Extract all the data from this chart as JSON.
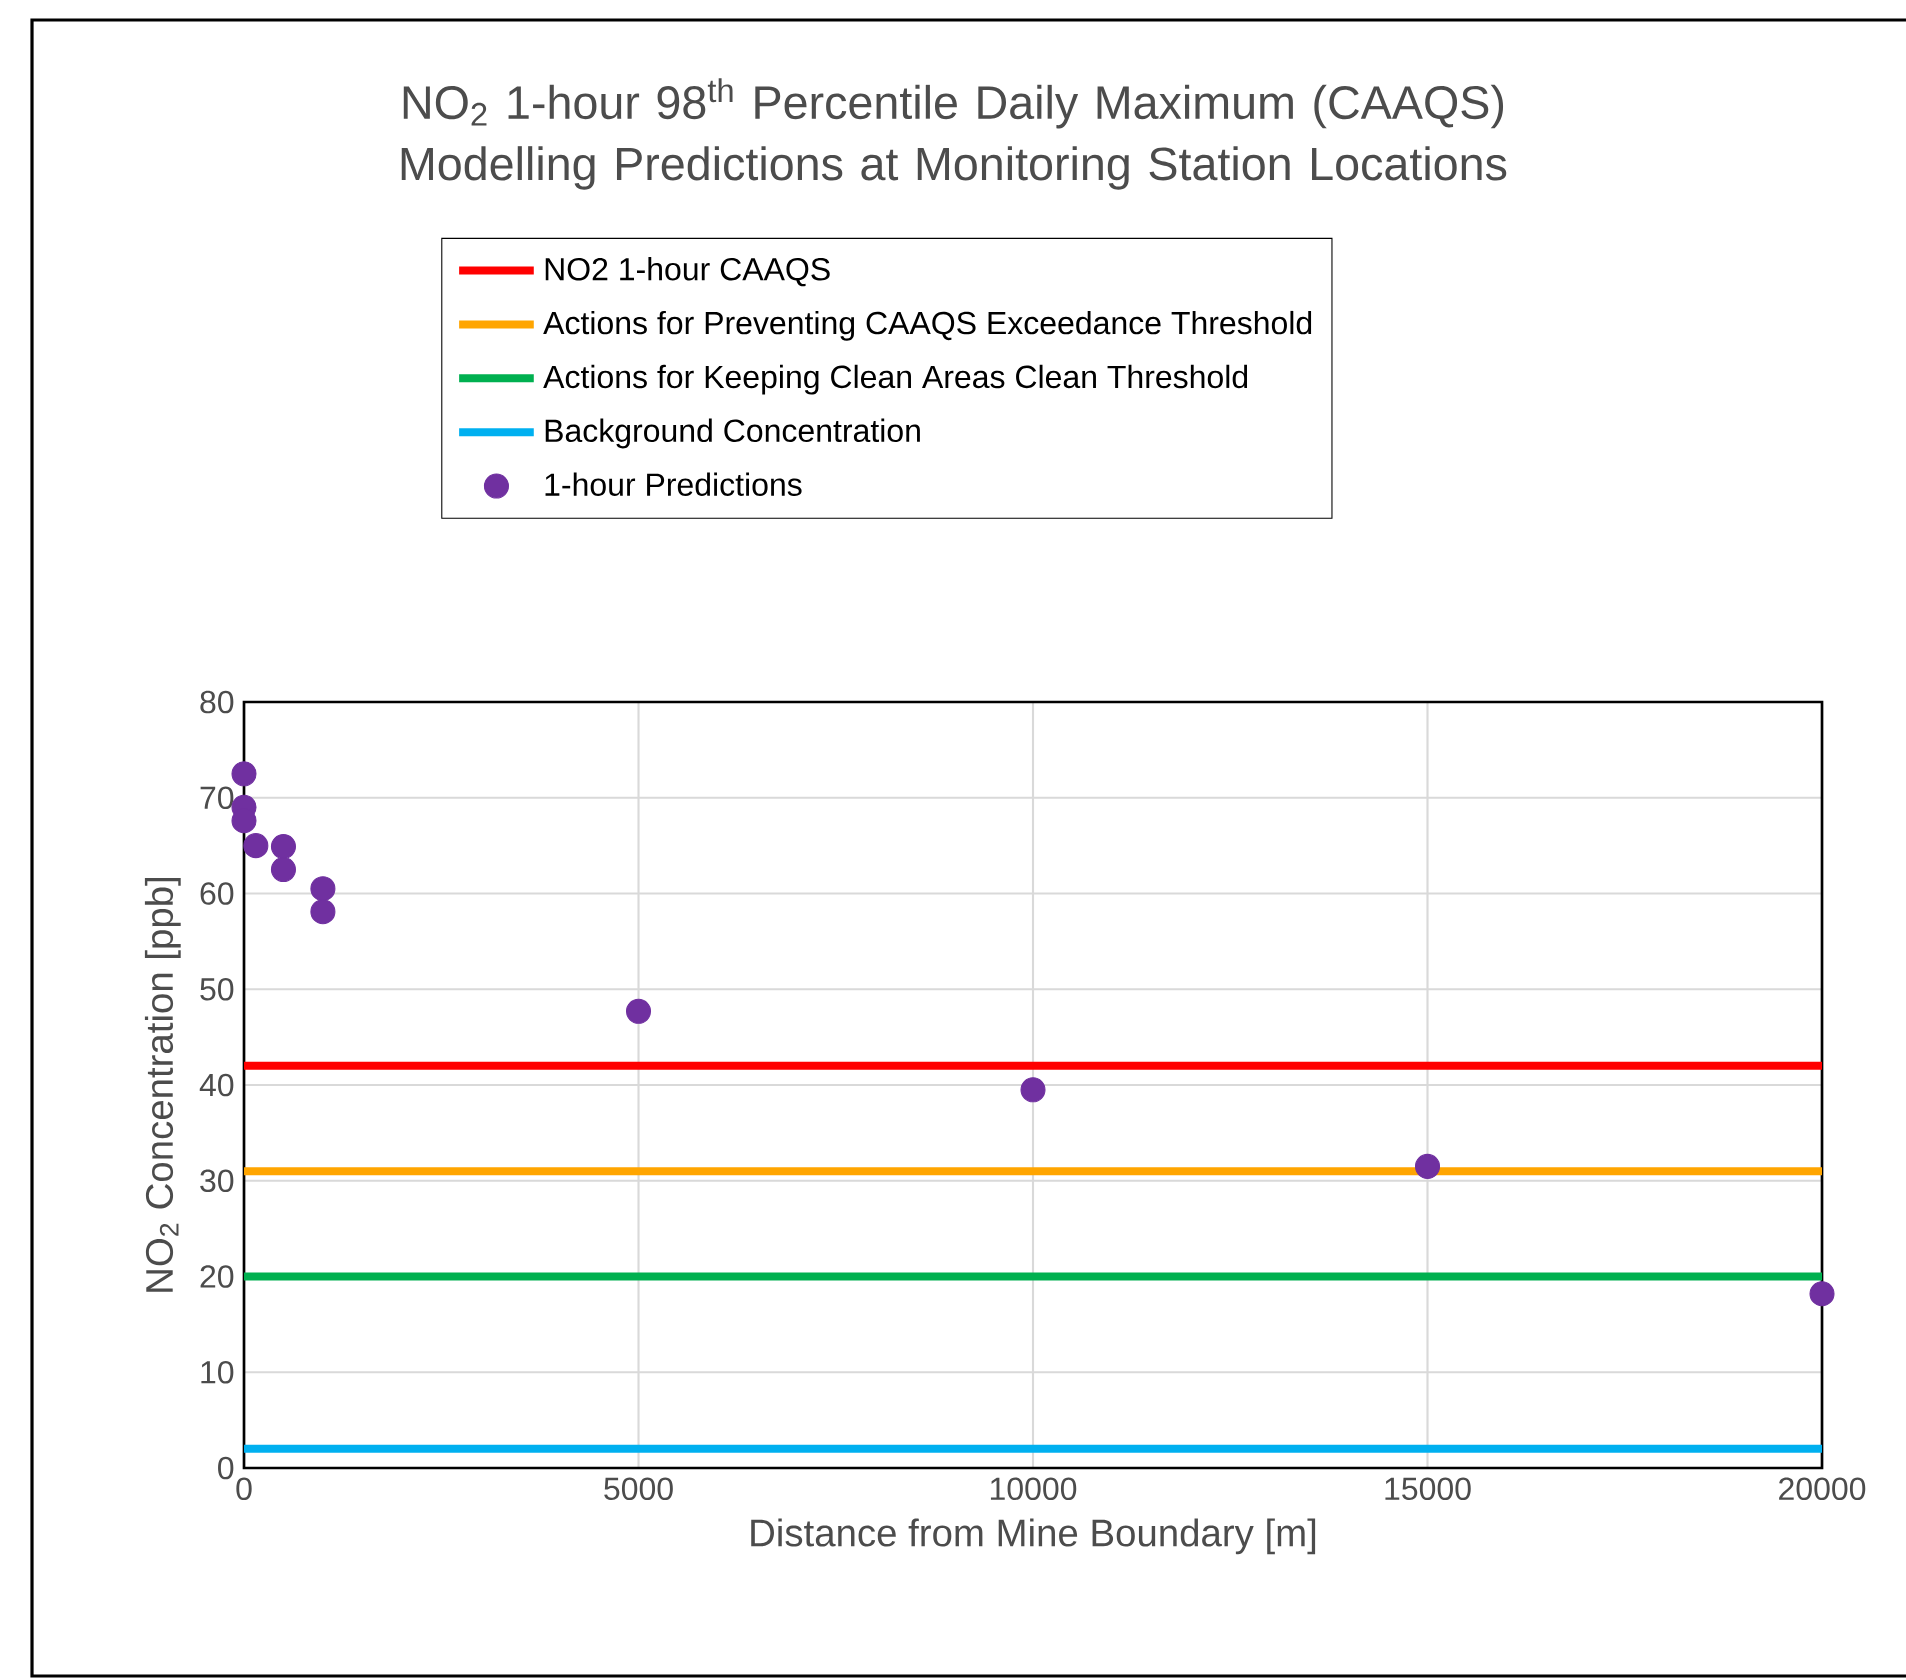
{
  "chart_data": {
    "type": "scatter",
    "title": "NO$_{2}$ 1-hour 98$^{th}$ Percentile Daily Maximum (CAAQS) Modelling Predictions at Monitoring Station Locations",
    "xlabel": "Distance from Mine Boundary [m]",
    "ylabel": "NO$_{2}$ Concentration [ppb]",
    "xlim": [
      0,
      20000
    ],
    "xticks": [
      0,
      5000,
      10000,
      15000,
      20000
    ],
    "ylim": [
      0,
      80
    ],
    "yticks": [
      0,
      10,
      20,
      30,
      40,
      50,
      60,
      70,
      80
    ],
    "grid": true,
    "legend": "top",
    "series": [
      {
        "name": "NO2 1-hour CAAQS",
        "type": "line",
        "color": "#ff0000",
        "x": [
          0,
          20000
        ],
        "values": [
          42,
          42
        ]
      },
      {
        "name": "Actions for Preventing CAAQS Exceedance Threshold",
        "type": "line",
        "color": "#ffa500",
        "x": [
          0,
          20000
        ],
        "values": [
          31,
          31
        ]
      },
      {
        "name": "Actions for Keeping Clean Areas Clean Threshold",
        "type": "line",
        "color": "#00b050",
        "x": [
          0,
          20000
        ],
        "values": [
          20,
          20
        ]
      },
      {
        "name": "Background Concentration",
        "type": "line",
        "color": "#00b0f0",
        "x": [
          0,
          20000
        ],
        "values": [
          2,
          2
        ]
      },
      {
        "name": "1-hour Predictions",
        "marker": "circle",
        "color": "#7030a0",
        "x": [
          0,
          0,
          0,
          150,
          500,
          500,
          1000,
          1000,
          5000,
          10000,
          15000,
          20000
        ],
        "values": [
          72.5,
          69,
          67.6,
          65,
          64.9,
          62.5,
          60.5,
          58.1,
          47.7,
          39.5,
          31.5,
          18.2
        ]
      }
    ]
  }
}
